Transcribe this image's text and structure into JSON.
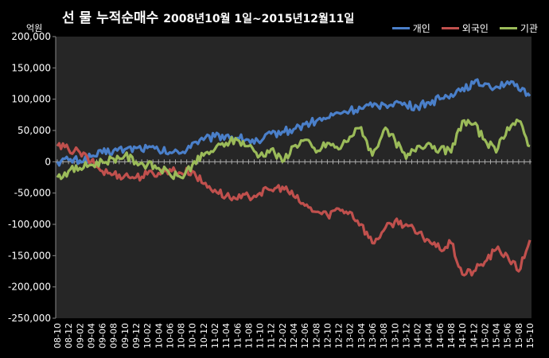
{
  "header": {
    "title": "선 물 누적순매수",
    "subtitle": "2008년10월 1일~2015년12월11일",
    "unit_label": "억원"
  },
  "colors": {
    "background": "#000000",
    "plot_background": "#262626",
    "individual": "#4a7fc9",
    "foreign": "#c0504d",
    "institution": "#9bbb59",
    "text": "#ffffff"
  },
  "chart_data": {
    "type": "line",
    "title": "선 물 누적순매수",
    "subtitle": "2008년10월 1일~2015년12월11일",
    "ylabel": "억원",
    "ylim": [
      -250000,
      200000
    ],
    "yticks": [
      200000,
      150000,
      100000,
      50000,
      0,
      -50000,
      -100000,
      -150000,
      -200000,
      -250000
    ],
    "ytick_labels": [
      "200,000",
      "150,000",
      "100,000",
      "50,000",
      "0",
      "-50,000",
      "-100,000",
      "-150,000",
      "-200,000",
      "-250,000"
    ],
    "categories": [
      "08-10",
      "08-12",
      "09-02",
      "09-04",
      "09-06",
      "09-08",
      "09-10",
      "09-12",
      "10-02",
      "10-04",
      "10-06",
      "10-08",
      "10-10",
      "10-12",
      "11-02",
      "11-04",
      "11-06",
      "11-08",
      "11-10",
      "11-12",
      "12-02",
      "12-04",
      "12-06",
      "12-08",
      "12-10",
      "12-12",
      "13-02",
      "13-04",
      "13-06",
      "13-08",
      "13-10",
      "13-12",
      "14-02",
      "14-04",
      "14-06",
      "14-08",
      "14-10",
      "14-12",
      "15-02",
      "15-04",
      "15-06",
      "15-08",
      "15-10"
    ],
    "grid": false,
    "legend_position": "top-right",
    "series": [
      {
        "name": "개인",
        "values": [
          0,
          3000,
          2000,
          8000,
          14000,
          18000,
          20000,
          22000,
          22000,
          18000,
          15000,
          14000,
          30000,
          35000,
          40000,
          42000,
          38000,
          35000,
          30000,
          45000,
          48000,
          52000,
          60000,
          65000,
          70000,
          78000,
          82000,
          85000,
          88000,
          92000,
          95000,
          90000,
          88000,
          95000,
          100000,
          108000,
          118000,
          125000,
          125000,
          120000,
          128000,
          115000,
          105000
        ]
      },
      {
        "name": "외국인",
        "values": [
          25000,
          20000,
          15000,
          0,
          -15000,
          -20000,
          -22000,
          -25000,
          -20000,
          -18000,
          -12000,
          -18000,
          -15000,
          -35000,
          -45000,
          -55000,
          -60000,
          -55000,
          -50000,
          -45000,
          -40000,
          -55000,
          -70000,
          -80000,
          -85000,
          -75000,
          -80000,
          -100000,
          -130000,
          -110000,
          -95000,
          -100000,
          -115000,
          -125000,
          -140000,
          -130000,
          -180000,
          -175000,
          -160000,
          -140000,
          -150000,
          -175000,
          -125000
        ]
      },
      {
        "name": "기관",
        "values": [
          -25000,
          -15000,
          -10000,
          -5000,
          0,
          5000,
          10000,
          0,
          -5000,
          -10000,
          -20000,
          -25000,
          -5000,
          10000,
          20000,
          30000,
          35000,
          25000,
          10000,
          20000,
          0,
          25000,
          35000,
          15000,
          30000,
          20000,
          40000,
          55000,
          10000,
          50000,
          35000,
          5000,
          25000,
          30000,
          20000,
          15000,
          65000,
          60000,
          35000,
          15000,
          55000,
          65000,
          25000
        ]
      }
    ]
  }
}
